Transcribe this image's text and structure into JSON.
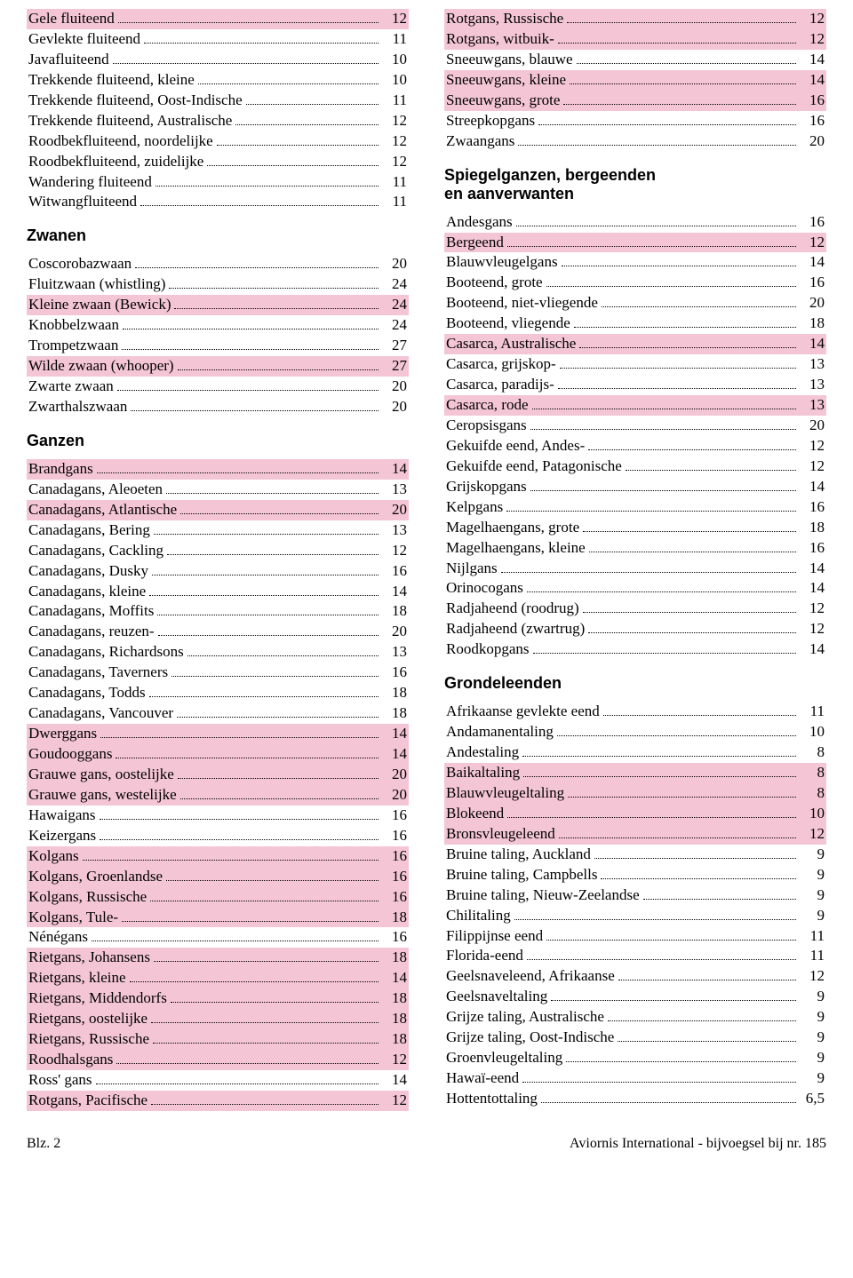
{
  "colors": {
    "highlight": "#f4c6d5",
    "text": "#000000",
    "bg": "#ffffff"
  },
  "footer": {
    "left": "Blz. 2",
    "right": "Aviornis International - bijvoegsel bij nr. 185"
  },
  "left": [
    {
      "type": "rows",
      "rows": [
        {
          "name": "Gele fluiteend",
          "val": "12",
          "hl": true
        },
        {
          "name": "Gevlekte fluiteend",
          "val": "11"
        },
        {
          "name": "Javafluiteend",
          "val": "10"
        },
        {
          "name": "Trekkende fluiteend, kleine",
          "val": "10"
        },
        {
          "name": "Trekkende fluiteend, Oost-Indische",
          "val": "11"
        },
        {
          "name": "Trekkende fluiteend, Australische",
          "val": "12"
        },
        {
          "name": "Roodbekfluiteend, noordelijke",
          "val": "12"
        },
        {
          "name": "Roodbekfluiteend, zuidelijke",
          "val": "12"
        },
        {
          "name": "Wandering  fluiteend",
          "val": "11"
        },
        {
          "name": "Witwangfluiteend",
          "val": "11"
        }
      ]
    },
    {
      "type": "head",
      "text": "Zwanen"
    },
    {
      "type": "rows",
      "rows": [
        {
          "name": "Coscorobazwaan",
          "val": "20"
        },
        {
          "name": "Fluitzwaan (whistling)",
          "val": "24"
        },
        {
          "name": "Kleine zwaan (Bewick)",
          "val": "24",
          "hl": true
        },
        {
          "name": "Knobbelzwaan",
          "val": "24"
        },
        {
          "name": "Trompetzwaan",
          "val": "27"
        },
        {
          "name": "Wilde zwaan (whooper)",
          "val": "27",
          "hl": true
        },
        {
          "name": "Zwarte zwaan",
          "val": "20"
        },
        {
          "name": "Zwarthalszwaan",
          "val": "20"
        }
      ]
    },
    {
      "type": "head",
      "text": "Ganzen"
    },
    {
      "type": "rows",
      "rows": [
        {
          "name": "Brandgans",
          "val": "14",
          "hl": true
        },
        {
          "name": "Canadagans, Aleoeten",
          "val": "13"
        },
        {
          "name": "Canadagans, Atlantische",
          "val": "20",
          "hl": true
        },
        {
          "name": "Canadagans, Bering",
          "val": "13"
        },
        {
          "name": "Canadagans, Cackling",
          "val": "12"
        },
        {
          "name": "Canadagans, Dusky",
          "val": "16"
        },
        {
          "name": "Canadagans, kleine",
          "val": "14"
        },
        {
          "name": "Canadagans, Moffits",
          "val": "18"
        },
        {
          "name": "Canadagans, reuzen-",
          "val": "20"
        },
        {
          "name": "Canadagans, Richardsons",
          "val": "13"
        },
        {
          "name": "Canadagans, Taverners",
          "val": "16"
        },
        {
          "name": "Canadagans, Todds",
          "val": "18"
        },
        {
          "name": "Canadagans, Vancouver",
          "val": "18"
        },
        {
          "name": "Dwerggans",
          "val": "14",
          "hl": true
        },
        {
          "name": "Goudooggans",
          "val": "14",
          "hl": true
        },
        {
          "name": "Grauwe gans, oostelijke",
          "val": "20",
          "hl": true
        },
        {
          "name": "Grauwe gans, westelijke",
          "val": "20",
          "hl": true
        },
        {
          "name": "Hawaigans",
          "val": "16"
        },
        {
          "name": "Keizergans",
          "val": "16"
        },
        {
          "name": "Kolgans",
          "val": "16",
          "hl": true
        },
        {
          "name": "Kolgans, Groenlandse",
          "val": "16",
          "hl": true
        },
        {
          "name": "Kolgans, Russische",
          "val": "16",
          "hl": true
        },
        {
          "name": "Kolgans, Tule-",
          "val": "18",
          "hl": true
        },
        {
          "name": "Nénégans",
          "val": "16"
        },
        {
          "name": "Rietgans, Johansens",
          "val": "18",
          "hl": true
        },
        {
          "name": "Rietgans, kleine",
          "val": "14",
          "hl": true
        },
        {
          "name": "Rietgans, Middendorfs",
          "val": "18",
          "hl": true
        },
        {
          "name": "Rietgans, oostelijke",
          "val": "18",
          "hl": true
        },
        {
          "name": "Rietgans, Russische",
          "val": "18",
          "hl": true
        },
        {
          "name": "Roodhalsgans",
          "val": "12",
          "hl": true
        },
        {
          "name": "Ross' gans",
          "val": "14"
        },
        {
          "name": "Rotgans, Pacifische",
          "val": "12",
          "hl": true
        }
      ]
    }
  ],
  "right": [
    {
      "type": "rows",
      "rows": [
        {
          "name": "Rotgans, Russische",
          "val": "12",
          "hl": true
        },
        {
          "name": "Rotgans, witbuik-",
          "val": "12",
          "hl": true
        },
        {
          "name": "Sneeuwgans, blauwe",
          "val": "14"
        },
        {
          "name": "Sneeuwgans, kleine",
          "val": "14",
          "hl": true
        },
        {
          "name": "Sneeuwgans, grote",
          "val": "16",
          "hl": true
        },
        {
          "name": "Streepkopgans",
          "val": "16"
        },
        {
          "name": "Zwaangans",
          "val": "20"
        }
      ]
    },
    {
      "type": "head",
      "text": "Spiegelganzen, bergeenden\nen aanverwanten"
    },
    {
      "type": "rows",
      "rows": [
        {
          "name": "Andesgans",
          "val": "16"
        },
        {
          "name": "Bergeend",
          "val": "12",
          "hl": true
        },
        {
          "name": "Blauwvleugelgans",
          "val": "14"
        },
        {
          "name": "Booteend, grote",
          "val": "16"
        },
        {
          "name": "Booteend, niet-vliegende",
          "val": "20"
        },
        {
          "name": "Booteend, vliegende",
          "val": "18"
        },
        {
          "name": "Casarca, Australische",
          "val": "14",
          "hl": true
        },
        {
          "name": "Casarca, grijskop-",
          "val": "13"
        },
        {
          "name": "Casarca, paradijs-",
          "val": "13"
        },
        {
          "name": "Casarca, rode",
          "val": "13",
          "hl": true
        },
        {
          "name": "Ceropsisgans",
          "val": "20"
        },
        {
          "name": "Gekuifde eend, Andes-",
          "val": "12"
        },
        {
          "name": "Gekuifde eend, Patagonische",
          "val": "12"
        },
        {
          "name": "Grijskopgans",
          "val": "14"
        },
        {
          "name": "Kelpgans",
          "val": "16"
        },
        {
          "name": "Magelhaengans, grote",
          "val": "18"
        },
        {
          "name": "Magelhaengans, kleine",
          "val": "16"
        },
        {
          "name": "Nijlgans",
          "val": "14"
        },
        {
          "name": "Orinocogans",
          "val": "14"
        },
        {
          "name": "Radjaheend (roodrug)",
          "val": "12"
        },
        {
          "name": "Radjaheend (zwartrug)",
          "val": "12"
        },
        {
          "name": "Roodkopgans",
          "val": "14"
        }
      ]
    },
    {
      "type": "head",
      "text": "Grondeleenden"
    },
    {
      "type": "rows",
      "rows": [
        {
          "name": "Afrikaanse gevlekte eend",
          "val": "11"
        },
        {
          "name": "Andamanentaling",
          "val": "10"
        },
        {
          "name": "Andestaling",
          "val": "8"
        },
        {
          "name": "Baikaltaling",
          "val": "8",
          "hl": true
        },
        {
          "name": "Blauwvleugeltaling",
          "val": "8",
          "hl": true
        },
        {
          "name": "Blokeend",
          "val": "10",
          "hl": true
        },
        {
          "name": "Bronsvleugeleend",
          "val": "12",
          "hl": true
        },
        {
          "name": "Bruine taling, Auckland",
          "val": "9"
        },
        {
          "name": "Bruine taling, Campbells",
          "val": "9"
        },
        {
          "name": "Bruine taling, Nieuw-Zeelandse",
          "val": "9"
        },
        {
          "name": "Chilitaling",
          "val": "9"
        },
        {
          "name": "Filippijnse eend",
          "val": "11"
        },
        {
          "name": "Florida-eend",
          "val": "11"
        },
        {
          "name": "Geelsnaveleend, Afrikaanse",
          "val": "12"
        },
        {
          "name": "Geelsnaveltaling",
          "val": "9"
        },
        {
          "name": "Grijze taling, Australische",
          "val": "9"
        },
        {
          "name": "Grijze taling, Oost-Indische",
          "val": "9"
        },
        {
          "name": "Groenvleugeltaling",
          "val": "9"
        },
        {
          "name": "Hawaï-eend",
          "val": "9"
        },
        {
          "name": "Hottentottaling",
          "val": "6,5"
        }
      ]
    }
  ]
}
